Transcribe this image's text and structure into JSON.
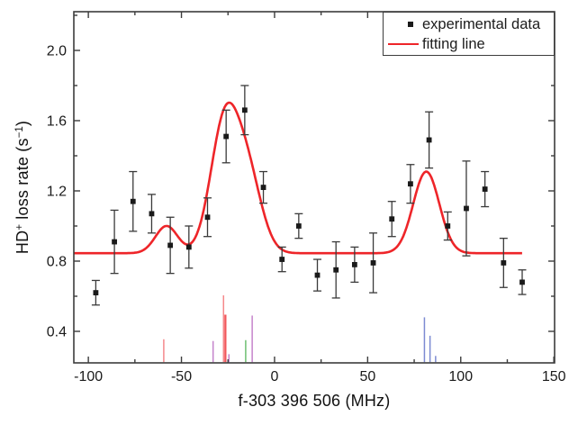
{
  "chart_data": {
    "type": "scatter",
    "title": "",
    "xlabel": "f-303 396 506 (MHz)",
    "ylabel_parts": {
      "pre": "HD",
      "sup1": "+",
      "mid": " loss rate (s",
      "sup2": "−1",
      "post": ")"
    },
    "xlim": [
      -107.8,
      150.4
    ],
    "ylim": [
      0.2205,
      2.2205
    ],
    "x_major_ticks": [
      -100,
      -50,
      0,
      50,
      100,
      150
    ],
    "x_tick_labels": [
      "-100",
      "-50",
      "0",
      "50",
      "100",
      "150"
    ],
    "x_minor_ticks": [
      -75,
      -25,
      25,
      75,
      125
    ],
    "y_major_ticks": [
      0.4,
      0.8,
      1.2,
      1.6,
      2.0
    ],
    "y_tick_labels": [
      "0.4",
      "0.8",
      "1.2",
      "1.6",
      "2.0"
    ],
    "y_minor_ticks": [
      0.6,
      1.0,
      1.4,
      1.8,
      2.2
    ],
    "grid": false,
    "legend": {
      "position": "top-right",
      "items": [
        {
          "label": "experimental data",
          "marker": "square",
          "color": "#1a1a1a"
        },
        {
          "label": "fitting line",
          "marker": "line",
          "color": "#ee2529"
        }
      ]
    },
    "series": [
      {
        "name": "experimental data",
        "marker": "square",
        "color": "#1a1a1a",
        "points": [
          {
            "x": -96,
            "y": 0.62,
            "err": 0.07
          },
          {
            "x": -86,
            "y": 0.91,
            "err": 0.18
          },
          {
            "x": -76,
            "y": 1.14,
            "err": 0.17
          },
          {
            "x": -66,
            "y": 1.07,
            "err": 0.11
          },
          {
            "x": -56,
            "y": 0.89,
            "err": 0.16
          },
          {
            "x": -46,
            "y": 0.88,
            "err": 0.12
          },
          {
            "x": -36,
            "y": 1.05,
            "err": 0.11
          },
          {
            "x": -26,
            "y": 1.51,
            "err": 0.15
          },
          {
            "x": -16,
            "y": 1.66,
            "err": 0.14
          },
          {
            "x": -6,
            "y": 1.22,
            "err": 0.09
          },
          {
            "x": 4,
            "y": 0.81,
            "err": 0.07
          },
          {
            "x": 13,
            "y": 1.0,
            "err": 0.07
          },
          {
            "x": 23,
            "y": 0.72,
            "err": 0.09
          },
          {
            "x": 33,
            "y": 0.75,
            "err": 0.16
          },
          {
            "x": 43,
            "y": 0.78,
            "err": 0.1
          },
          {
            "x": 53,
            "y": 0.79,
            "err": 0.17
          },
          {
            "x": 63,
            "y": 1.04,
            "err": 0.1
          },
          {
            "x": 73,
            "y": 1.24,
            "err": 0.11
          },
          {
            "x": 83,
            "y": 1.49,
            "err": 0.16
          },
          {
            "x": 93,
            "y": 1.0,
            "err": 0.08
          },
          {
            "x": 103,
            "y": 1.1,
            "err": 0.27
          },
          {
            "x": 113,
            "y": 1.21,
            "err": 0.1
          },
          {
            "x": 123,
            "y": 0.79,
            "err": 0.14
          },
          {
            "x": 133,
            "y": 0.68,
            "err": 0.07
          }
        ]
      }
    ],
    "fit": {
      "name": "fitting line",
      "color": "#ee2529",
      "line_width": 2.6,
      "baseline": 0.845,
      "x_start": -107.8,
      "x_end": 133.5,
      "gaussians": [
        {
          "center": -58,
          "amp": 0.155,
          "sigma": 6
        },
        {
          "center": -27,
          "amp": 0.72,
          "sigma": 7.5
        },
        {
          "center": -14.5,
          "amp": 0.43,
          "sigma": 7.5
        },
        {
          "center": 81.5,
          "amp": 0.465,
          "sigma": 7
        }
      ]
    },
    "transition_sticks": [
      {
        "x": -59.5,
        "top": 0.355,
        "color": "#f5888b",
        "width": 1.5
      },
      {
        "x": -33,
        "top": 0.345,
        "color": "#c583cb",
        "width": 1.5
      },
      {
        "x": -27.4,
        "top": 0.605,
        "color": "#f5888b",
        "width": 1.5
      },
      {
        "x": -26.4,
        "top": 0.495,
        "color": "#f2575b",
        "width": 2.3
      },
      {
        "x": -24.5,
        "top": 0.27,
        "color": "#c583cb",
        "width": 1.5
      },
      {
        "x": -15.5,
        "top": 0.35,
        "color": "#6ec071",
        "width": 1.5
      },
      {
        "x": -12,
        "top": 0.49,
        "color": "#c583cb",
        "width": 1.5
      },
      {
        "x": 80.5,
        "top": 0.48,
        "color": "#7d8bd2",
        "width": 1.5
      },
      {
        "x": 83.5,
        "top": 0.375,
        "color": "#7d8bd2",
        "width": 1.5
      },
      {
        "x": 86.5,
        "top": 0.26,
        "color": "#7d8bd2",
        "width": 1.5
      }
    ],
    "colors": {
      "frame": "#3c3c3c",
      "marker": "#1a1a1a",
      "error_bar": "#3a3a3a",
      "fit_line": "#ee2529",
      "tick_label": "#1a1a1a"
    }
  }
}
